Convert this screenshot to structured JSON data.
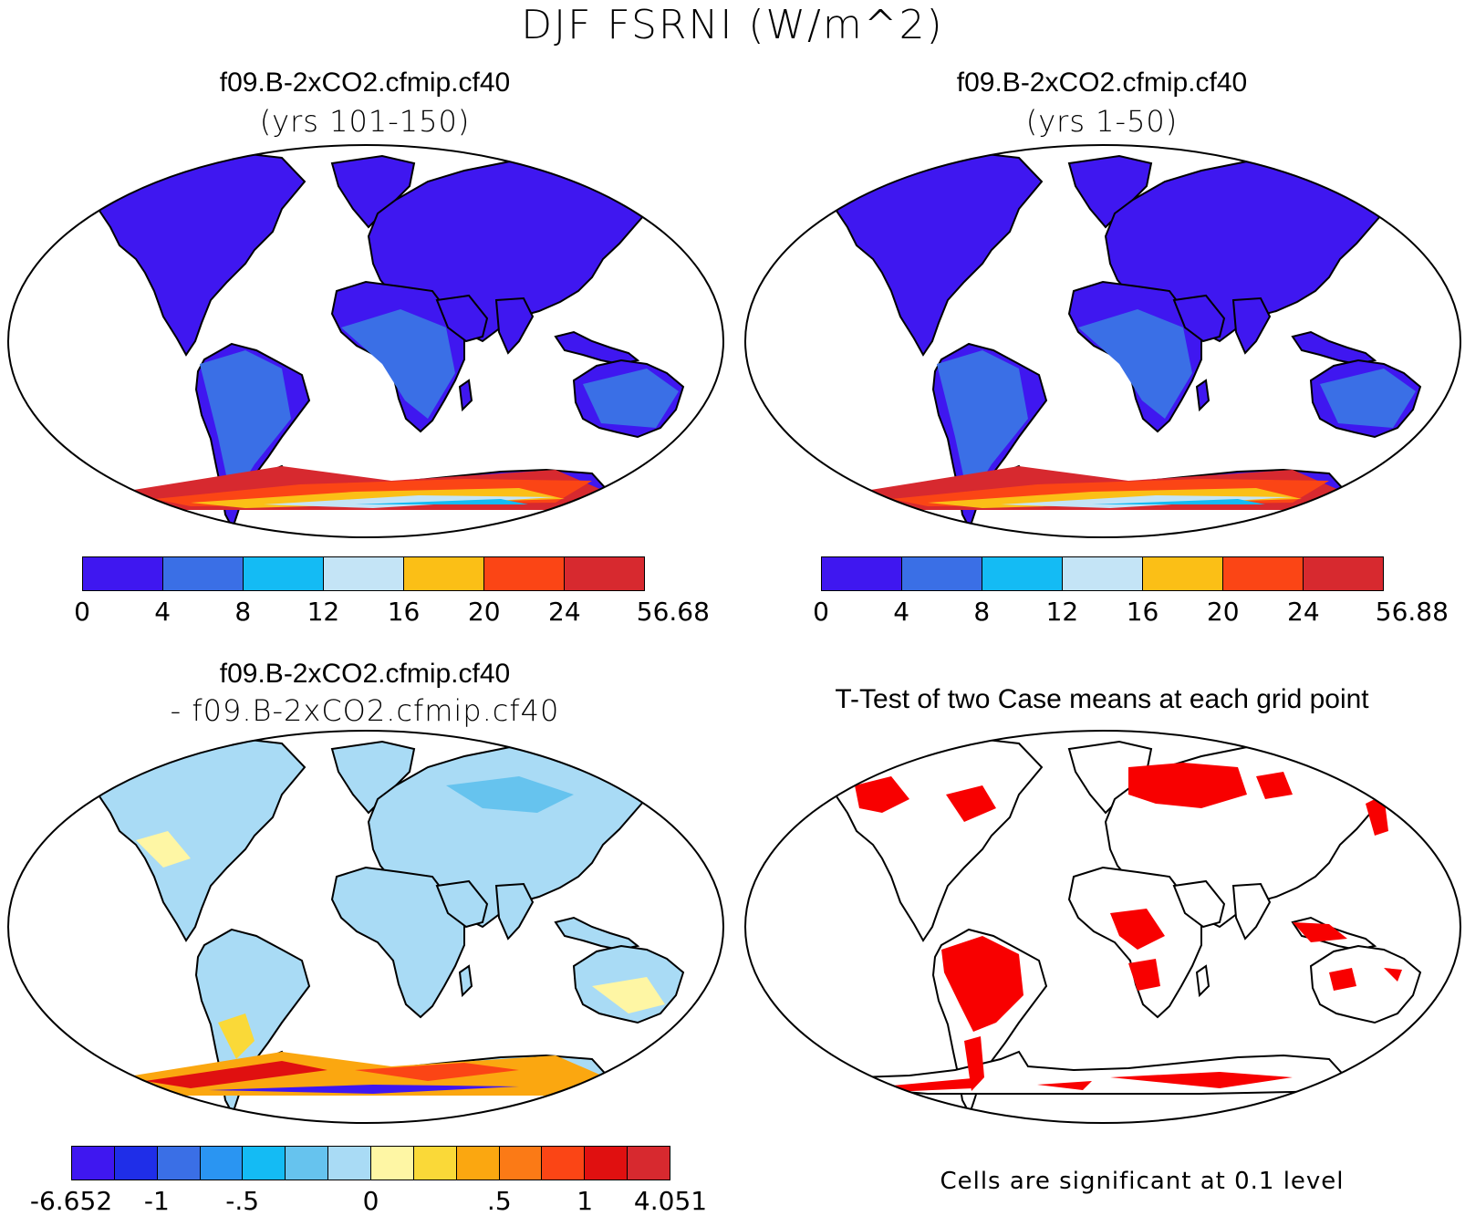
{
  "title": "DJF FSRNI (W/m^2)",
  "panels": [
    {
      "title": "f09.B-2xCO2.cfmip.cf40",
      "subtitle": "(yrs 101-150)"
    },
    {
      "title": "f09.B-2xCO2.cfmip.cf40",
      "subtitle": "(yrs 1-50)"
    },
    {
      "title": "f09.B-2xCO2.cfmip.cf40",
      "subtitle": "- f09.B-2xCO2.cfmip.cf40"
    },
    {
      "title": "T-Test of two Case means at each grid point",
      "subtitle": ""
    }
  ],
  "colorbars": {
    "case1": {
      "colors": [
        "#3f17f0",
        "#3a6fe6",
        "#14bbf4",
        "#c4e4f6",
        "#fbbf16",
        "#fb4515",
        "#d7292f"
      ],
      "labels": [
        "0",
        "4",
        "8",
        "12",
        "16",
        "20",
        "24",
        "56.68"
      ]
    },
    "case2": {
      "colors": [
        "#3f17f0",
        "#3a6fe6",
        "#14bbf4",
        "#c4e4f6",
        "#fbbf16",
        "#fb4515",
        "#d7292f"
      ],
      "labels": [
        "0",
        "4",
        "8",
        "12",
        "16",
        "20",
        "24",
        "56.88"
      ]
    },
    "diff": {
      "colors": [
        "#3f17f0",
        "#1f2ee8",
        "#3a6fe6",
        "#2a95f2",
        "#14bbf4",
        "#66c3ee",
        "#a9dbf5",
        "#fef6a4",
        "#fad938",
        "#fba710",
        "#fb7a16",
        "#fb4515",
        "#e01010",
        "#d7292f"
      ],
      "labels": [
        "-6.652",
        "-1",
        "-.5",
        "0",
        ".5",
        "1",
        "4.051"
      ]
    }
  },
  "significance_note": "Cells are significant at 0.1 level",
  "legend": {
    "significant_color": "#f80000"
  }
}
